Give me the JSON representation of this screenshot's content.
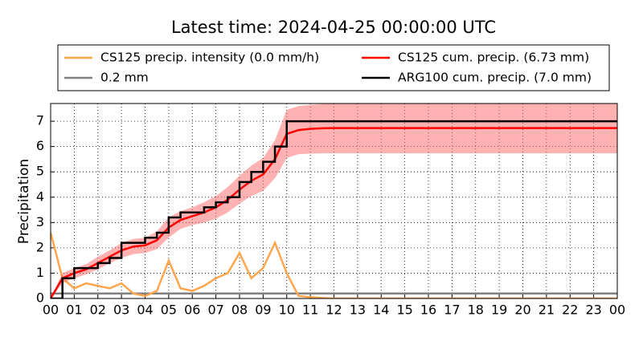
{
  "chart_data": {
    "type": "line",
    "title": "Latest time: 2024-04-25 00:00:00 UTC",
    "y_label": "Precipitation",
    "x": [
      0,
      0.5,
      1,
      1.5,
      2,
      2.5,
      3,
      3.5,
      4,
      4.5,
      5,
      5.5,
      6,
      6.5,
      7,
      7.5,
      8,
      8.5,
      9,
      9.5,
      10,
      10.5,
      11,
      11.5,
      12,
      12.5,
      13,
      13.5,
      14,
      14.5,
      15,
      15.5,
      16,
      16.5,
      17,
      17.5,
      18,
      18.5,
      19,
      19.5,
      20,
      20.5,
      21,
      21.5,
      22,
      22.5,
      23,
      23.5,
      24
    ],
    "series": [
      {
        "name": "CS125 precip. intensity (0.0 mm/h)",
        "color": "#ffa64d",
        "style": "line",
        "values": [
          2.6,
          0.8,
          0.4,
          0.6,
          0.5,
          0.4,
          0.6,
          0.2,
          0.1,
          0.3,
          1.5,
          0.4,
          0.3,
          0.5,
          0.8,
          1.0,
          1.8,
          0.8,
          1.2,
          2.2,
          1.0,
          0.1,
          0.05,
          0.02,
          0,
          0,
          0,
          0,
          0,
          0,
          0,
          0,
          0,
          0,
          0,
          0,
          0,
          0,
          0,
          0,
          0,
          0,
          0,
          0,
          0,
          0,
          0,
          0,
          0
        ]
      },
      {
        "name": "CS125 cum. precip. (6.73 mm)",
        "color": "#ff0000",
        "style": "line",
        "values": [
          0,
          0.8,
          1.0,
          1.15,
          1.4,
          1.65,
          1.9,
          2.05,
          2.1,
          2.3,
          2.8,
          3.1,
          3.25,
          3.4,
          3.6,
          3.9,
          4.3,
          4.65,
          4.9,
          5.5,
          6.5,
          6.65,
          6.7,
          6.72,
          6.73,
          6.73,
          6.73,
          6.73,
          6.73,
          6.73,
          6.73,
          6.73,
          6.73,
          6.73,
          6.73,
          6.73,
          6.73,
          6.73,
          6.73,
          6.73,
          6.73,
          6.73,
          6.73,
          6.73,
          6.73,
          6.73,
          6.73,
          6.73,
          6.73
        ],
        "band": {
          "color": "#ff6666",
          "lower": [
            0,
            0.6,
            0.8,
            0.95,
            1.15,
            1.4,
            1.6,
            1.75,
            1.8,
            1.95,
            2.4,
            2.75,
            2.9,
            3.0,
            3.15,
            3.4,
            3.75,
            4.05,
            4.25,
            4.75,
            5.55,
            5.7,
            5.72,
            5.73,
            5.73,
            5.73,
            5.73,
            5.73,
            5.73,
            5.73,
            5.73,
            5.73,
            5.73,
            5.73,
            5.73,
            5.73,
            5.73,
            5.73,
            5.73,
            5.73,
            5.73,
            5.73,
            5.73,
            5.73,
            5.73,
            5.73,
            5.73,
            5.73,
            5.73
          ],
          "upper": [
            0,
            1.0,
            1.2,
            1.35,
            1.65,
            1.9,
            2.2,
            2.35,
            2.4,
            2.65,
            3.2,
            3.45,
            3.6,
            3.8,
            4.05,
            4.4,
            4.85,
            5.25,
            5.55,
            6.25,
            7.45,
            7.6,
            7.65,
            7.68,
            7.7,
            7.7,
            7.7,
            7.7,
            7.7,
            7.7,
            7.7,
            7.7,
            7.7,
            7.7,
            7.7,
            7.7,
            7.7,
            7.7,
            7.7,
            7.7,
            7.7,
            7.7,
            7.7,
            7.7,
            7.7,
            7.7,
            7.7,
            7.7,
            7.7
          ]
        }
      },
      {
        "name": "ARG100 cum. precip. (7.0 mm)",
        "color": "#000000",
        "style": "step",
        "values": [
          0,
          0.8,
          1.2,
          1.2,
          1.4,
          1.6,
          2.2,
          2.2,
          2.4,
          2.6,
          3.2,
          3.4,
          3.4,
          3.6,
          3.8,
          4.0,
          4.6,
          5.0,
          5.4,
          6.0,
          7.0,
          7.0,
          7.0,
          7.0,
          7.0,
          7.0,
          7.0,
          7.0,
          7.0,
          7.0,
          7.0,
          7.0,
          7.0,
          7.0,
          7.0,
          7.0,
          7.0,
          7.0,
          7.0,
          7.0,
          7.0,
          7.0,
          7.0,
          7.0,
          7.0,
          7.0,
          7.0,
          7.0,
          7.0
        ]
      }
    ],
    "hlines": [
      {
        "name": "0.2 mm",
        "color": "#808080",
        "value": 0.2
      }
    ],
    "xlim": [
      0,
      24
    ],
    "ylim": [
      0,
      7.7
    ],
    "xticks": [
      {
        "value": 0,
        "label": "00"
      },
      {
        "value": 1,
        "label": "01"
      },
      {
        "value": 2,
        "label": "02"
      },
      {
        "value": 3,
        "label": "03"
      },
      {
        "value": 4,
        "label": "04"
      },
      {
        "value": 5,
        "label": "05"
      },
      {
        "value": 6,
        "label": "06"
      },
      {
        "value": 7,
        "label": "07"
      },
      {
        "value": 8,
        "label": "08"
      },
      {
        "value": 9,
        "label": "09"
      },
      {
        "value": 10,
        "label": "10"
      },
      {
        "value": 11,
        "label": "11"
      },
      {
        "value": 12,
        "label": "12"
      },
      {
        "value": 13,
        "label": "13"
      },
      {
        "value": 14,
        "label": "14"
      },
      {
        "value": 15,
        "label": "15"
      },
      {
        "value": 16,
        "label": "16"
      },
      {
        "value": 17,
        "label": "17"
      },
      {
        "value": 18,
        "label": "18"
      },
      {
        "value": 19,
        "label": "19"
      },
      {
        "value": 20,
        "label": "20"
      },
      {
        "value": 21,
        "label": "21"
      },
      {
        "value": 22,
        "label": "22"
      },
      {
        "value": 23,
        "label": "23"
      },
      {
        "value": 24,
        "label": "00"
      }
    ],
    "yticks": [
      0,
      1,
      2,
      3,
      4,
      5,
      6,
      7
    ],
    "grid": true
  }
}
